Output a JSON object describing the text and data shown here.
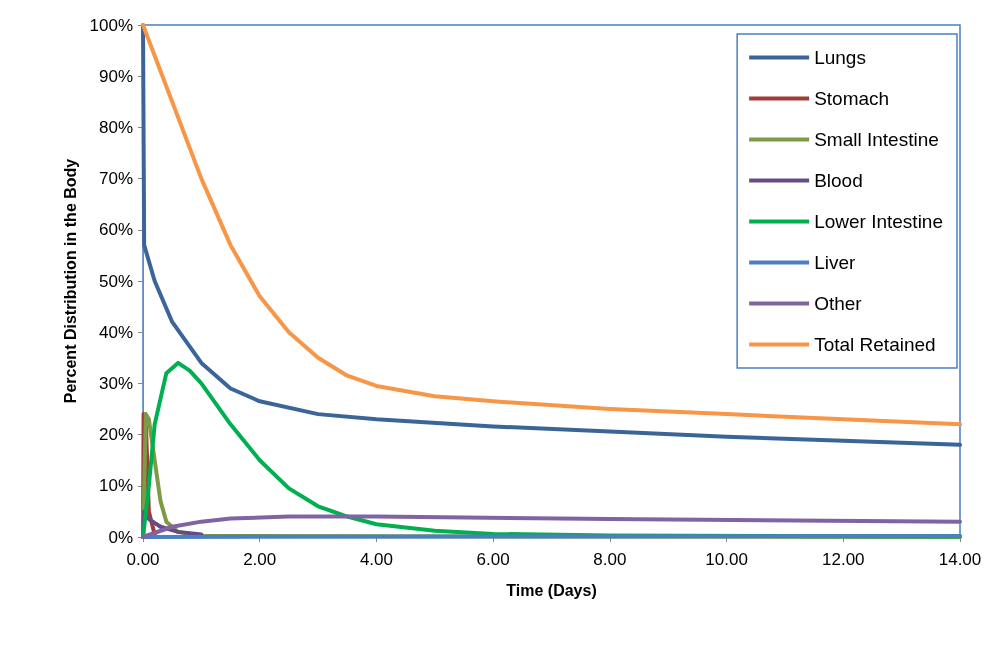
{
  "chart_data": {
    "type": "line",
    "xlabel": "Time (Days)",
    "ylabel": "Percent Distribution in the Body",
    "xlim": [
      0,
      14
    ],
    "ylim": [
      0,
      100
    ],
    "xticks": [
      {
        "value": 0,
        "label": "0.00"
      },
      {
        "value": 2,
        "label": "2.00"
      },
      {
        "value": 4,
        "label": "4.00"
      },
      {
        "value": 6,
        "label": "6.00"
      },
      {
        "value": 8,
        "label": "8.00"
      },
      {
        "value": 10,
        "label": "10.00"
      },
      {
        "value": 12,
        "label": "12.00"
      },
      {
        "value": 14,
        "label": "14.00"
      }
    ],
    "yticks": [
      {
        "value": 0,
        "label": "0%"
      },
      {
        "value": 10,
        "label": "10%"
      },
      {
        "value": 20,
        "label": "20%"
      },
      {
        "value": 30,
        "label": "30%"
      },
      {
        "value": 40,
        "label": "40%"
      },
      {
        "value": 50,
        "label": "50%"
      },
      {
        "value": 60,
        "label": "60%"
      },
      {
        "value": 70,
        "label": "70%"
      },
      {
        "value": 80,
        "label": "80%"
      },
      {
        "value": 90,
        "label": "90%"
      },
      {
        "value": 100,
        "label": "100%"
      }
    ],
    "grid": false,
    "legend": "top right",
    "marker": "none",
    "line_style": "solid",
    "series": [
      {
        "name": "Lungs",
        "color": "#3b6499",
        "x": [
          0,
          0.02,
          0.2,
          0.5,
          1,
          1.5,
          2,
          3,
          4,
          6,
          8,
          10,
          12,
          14
        ],
        "values": [
          100,
          57,
          50,
          42,
          34,
          29,
          26.5,
          24,
          23,
          21.6,
          20.6,
          19.6,
          18.8,
          18
        ]
      },
      {
        "name": "Stomach",
        "color": "#a13c3a",
        "x": [
          0,
          0.01,
          0.05,
          0.1,
          0.2
        ],
        "values": [
          0,
          24,
          22,
          5,
          0.5
        ]
      },
      {
        "name": "Small Intestine",
        "color": "#7e9a45",
        "x": [
          0,
          0.05,
          0.1,
          0.2,
          0.3,
          0.4,
          0.6,
          1,
          14
        ],
        "values": [
          0,
          24,
          23,
          15,
          7,
          3,
          1,
          0.2,
          0
        ]
      },
      {
        "name": "Blood",
        "color": "#654c85",
        "x": [
          0,
          0.02,
          0.1,
          0.3,
          0.6,
          1
        ],
        "values": [
          0,
          5,
          3.5,
          2,
          1,
          0.5
        ]
      },
      {
        "name": "Lower Intestine",
        "color": "#00b050",
        "x": [
          0,
          0.1,
          0.2,
          0.4,
          0.6,
          0.8,
          1,
          1.5,
          2,
          2.5,
          3,
          3.5,
          4,
          5,
          6,
          8,
          14
        ],
        "values": [
          0,
          10,
          22,
          32,
          34,
          32.5,
          30,
          22,
          15,
          9.5,
          6,
          4,
          2.5,
          1.2,
          0.6,
          0.3,
          0.1
        ]
      },
      {
        "name": "Liver",
        "color": "#4a7fc1",
        "x": [
          0,
          14
        ],
        "values": [
          0,
          0.2
        ]
      },
      {
        "name": "Other",
        "color": "#8064a2",
        "x": [
          0,
          0.5,
          1,
          1.5,
          2.5,
          4,
          8,
          14
        ],
        "values": [
          0,
          2,
          3,
          3.6,
          4,
          4,
          3.5,
          3
        ]
      },
      {
        "name": "Total Retained",
        "color": "#f79646",
        "x": [
          0,
          0.5,
          1,
          1.5,
          2,
          2.5,
          3,
          3.5,
          4,
          5,
          6,
          8,
          10,
          12,
          14
        ],
        "values": [
          100,
          85,
          70,
          57,
          47,
          40,
          35,
          31.5,
          29.5,
          27.5,
          26.5,
          25,
          24,
          23,
          22
        ]
      }
    ]
  }
}
